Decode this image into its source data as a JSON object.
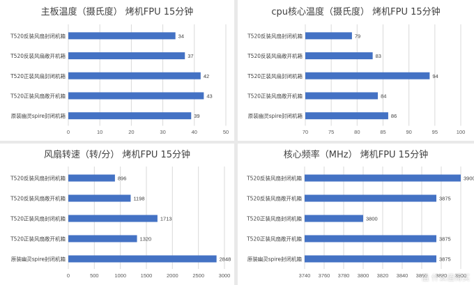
{
  "bar_color": "#4472c4",
  "watermark": "值 什么值得买",
  "chart_data": [
    {
      "type": "bar",
      "orientation": "horizontal",
      "title": "主板温度（摄氏度） 烤机FPU 15分钟",
      "categories": [
        "T520反装风扇封闭机箱",
        "T520反装风扇敞开机箱",
        "T520正装风扇封闭机箱",
        "T520正装风扇敞开机箱",
        "原装幽灵spire封闭机箱"
      ],
      "values": [
        34,
        37,
        42,
        43,
        39
      ],
      "xlim": [
        0,
        50
      ],
      "ticks": [
        0,
        10,
        20,
        30,
        40,
        50
      ],
      "grid": true
    },
    {
      "type": "bar",
      "orientation": "horizontal",
      "title": "cpu核心温度（摄氏度） 烤机FPU 15分钟",
      "categories": [
        "T520反装风扇封闭机箱",
        "T520反装风扇敞开机箱",
        "T520正装风扇封闭机箱",
        "T520正装风扇敞开机箱",
        "原装幽灵spire封闭机箱"
      ],
      "values": [
        79,
        83,
        94,
        84,
        86
      ],
      "xlim": [
        70,
        100
      ],
      "ticks": [
        70,
        75,
        80,
        85,
        90,
        95,
        100
      ],
      "grid": true
    },
    {
      "type": "bar",
      "orientation": "horizontal",
      "title": "风扇转速（转/分） 烤机FPU 15分钟",
      "categories": [
        "T520反装风扇封闭机箱",
        "T520反装风扇敞开机箱",
        "T520正装风扇封闭机箱",
        "T520正装风扇敞开机箱",
        "原装幽灵spire封闭机箱"
      ],
      "values": [
        896,
        1198,
        1713,
        1320,
        2848
      ],
      "xlim": [
        0,
        3000
      ],
      "ticks": [
        0,
        500,
        1000,
        1500,
        2000,
        2500,
        3000
      ],
      "grid": true
    },
    {
      "type": "bar",
      "orientation": "horizontal",
      "title": "核心频率（MHz） 烤机FPU 15分钟",
      "categories": [
        "T520反装风扇封闭机箱",
        "T520反装风扇敞开机箱",
        "T520正装风扇封闭机箱",
        "T520正装风扇敞开机箱",
        "原装幽灵spire封闭机箱"
      ],
      "values": [
        3900,
        3875,
        3800,
        3875,
        3875
      ],
      "xlim": [
        3740,
        3900
      ],
      "ticks": [
        3740,
        3760,
        3780,
        3800,
        3820,
        3840,
        3860,
        3880,
        3900
      ],
      "grid": true
    }
  ]
}
